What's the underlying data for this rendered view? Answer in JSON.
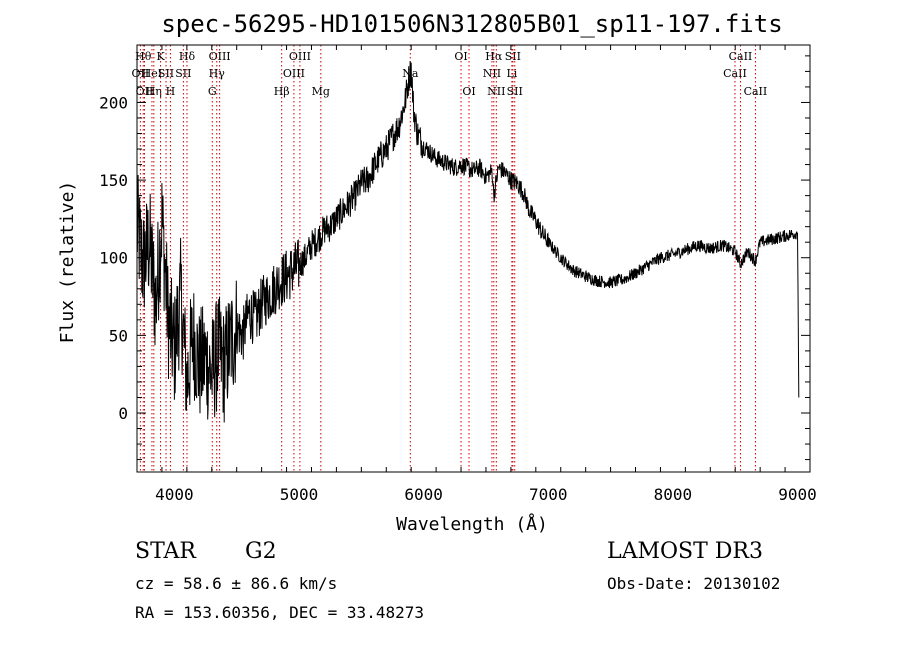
{
  "chart_data": {
    "type": "line",
    "title": "spec-56295-HD101506N312805B01_sp11-197.fits",
    "xlabel": "Wavelength (Å)",
    "ylabel": "Flux (relative)",
    "xlim": [
      3700,
      9100
    ],
    "ylim": [
      -38,
      237
    ],
    "xticks": [
      4000,
      5000,
      6000,
      7000,
      8000,
      9000
    ],
    "yticks": [
      0,
      50,
      100,
      150,
      200
    ],
    "grid": false,
    "series": [
      {
        "x": [
          3700,
          3750,
          3800,
          3850,
          3900,
          3950,
          4000,
          4050,
          4100,
          4150,
          4200,
          4250,
          4300,
          4350,
          4400,
          4450,
          4500,
          4550,
          4600,
          4650,
          4700,
          4750,
          4800,
          4850,
          4900,
          4950,
          5000,
          5050,
          5100,
          5150,
          5200,
          5250,
          5300,
          5350,
          5400,
          5450,
          5500,
          5550,
          5600,
          5650,
          5700,
          5750,
          5800,
          5850,
          5880,
          5900,
          5920,
          5950,
          6000,
          6050,
          6100,
          6150,
          6200,
          6250,
          6300,
          6350,
          6400,
          6450,
          6500,
          6550,
          6563,
          6600,
          6650,
          6700,
          6750,
          6800,
          6850,
          6900,
          6950,
          7000,
          7100,
          7200,
          7300,
          7400,
          7500,
          7600,
          7700,
          7800,
          7900,
          8000,
          8100,
          8200,
          8300,
          8400,
          8500,
          8542,
          8600,
          8662,
          8700,
          8800,
          8900,
          9000,
          9010
        ],
        "y": [
          120,
          95,
          110,
          70,
          125,
          60,
          40,
          75,
          20,
          50,
          30,
          35,
          25,
          40,
          30,
          45,
          55,
          50,
          65,
          60,
          70,
          75,
          80,
          85,
          88,
          92,
          95,
          100,
          108,
          112,
          118,
          120,
          125,
          130,
          135,
          140,
          148,
          150,
          158,
          165,
          170,
          178,
          185,
          200,
          215,
          222,
          195,
          180,
          172,
          168,
          164,
          162,
          160,
          158,
          160,
          158,
          156,
          158,
          152,
          156,
          140,
          158,
          155,
          150,
          148,
          142,
          130,
          124,
          116,
          110,
          100,
          92,
          88,
          85,
          84,
          86,
          90,
          95,
          100,
          102,
          105,
          108,
          106,
          108,
          104,
          96,
          104,
          98,
          110,
          112,
          114,
          116,
          10
        ]
      }
    ],
    "lines": [
      {
        "name": "OII",
        "x": 3727,
        "label_row": 2
      },
      {
        "name": "Hθ",
        "x": 3750,
        "label_row": 1
      },
      {
        "name": "OII",
        "x": 3760,
        "label_row": 3
      },
      {
        "name": "HeI",
        "x": 3820,
        "label_row": 2
      },
      {
        "name": "Hη",
        "x": 3835,
        "label_row": 3
      },
      {
        "name": "K",
        "x": 3889,
        "label_row": 1
      },
      {
        "name": "SII",
        "x": 3933,
        "label_row": 2
      },
      {
        "name": "H",
        "x": 3968,
        "label_row": 3
      },
      {
        "name": "Hδ",
        "x": 4101,
        "label_row": 1
      },
      {
        "name": "SII",
        "x": 4072,
        "label_row": 2
      },
      {
        "name": "OIII",
        "x": 4363,
        "label_row": 1
      },
      {
        "name": "Hγ",
        "x": 4340,
        "label_row": 2
      },
      {
        "name": "G",
        "x": 4304,
        "label_row": 3
      },
      {
        "name": "Hβ",
        "x": 4861,
        "label_row": 3
      },
      {
        "name": "OIII",
        "x": 4959,
        "label_row": 2
      },
      {
        "name": "OIII",
        "x": 5007,
        "label_row": 1
      },
      {
        "name": "Mg",
        "x": 5175,
        "label_row": 3
      },
      {
        "name": "Na",
        "x": 5893,
        "label_row": 2
      },
      {
        "name": "OI",
        "x": 6300,
        "label_row": 1
      },
      {
        "name": "OI",
        "x": 6364,
        "label_row": 3
      },
      {
        "name": "NII",
        "x": 6548,
        "label_row": 2
      },
      {
        "name": "Hα",
        "x": 6563,
        "label_row": 1
      },
      {
        "name": "NII",
        "x": 6583,
        "label_row": 3
      },
      {
        "name": "Li",
        "x": 6708,
        "label_row": 2
      },
      {
        "name": "SII",
        "x": 6716,
        "label_row": 1
      },
      {
        "name": "SII",
        "x": 6731,
        "label_row": 3
      },
      {
        "name": "CaII",
        "x": 8498,
        "label_row": 2
      },
      {
        "name": "CaII",
        "x": 8542,
        "label_row": 1
      },
      {
        "name": "CaII",
        "x": 8662,
        "label_row": 3
      }
    ],
    "line_color": "#cc0000"
  },
  "info": {
    "object_class": "STAR",
    "subclass": "G2",
    "survey": "LAMOST DR3",
    "redshift_text": "cz = 58.6 ± 86.6 km/s",
    "obs_date": "Obs-Date: 20130102",
    "coords": "RA = 153.60356, DEC =  33.48273"
  }
}
